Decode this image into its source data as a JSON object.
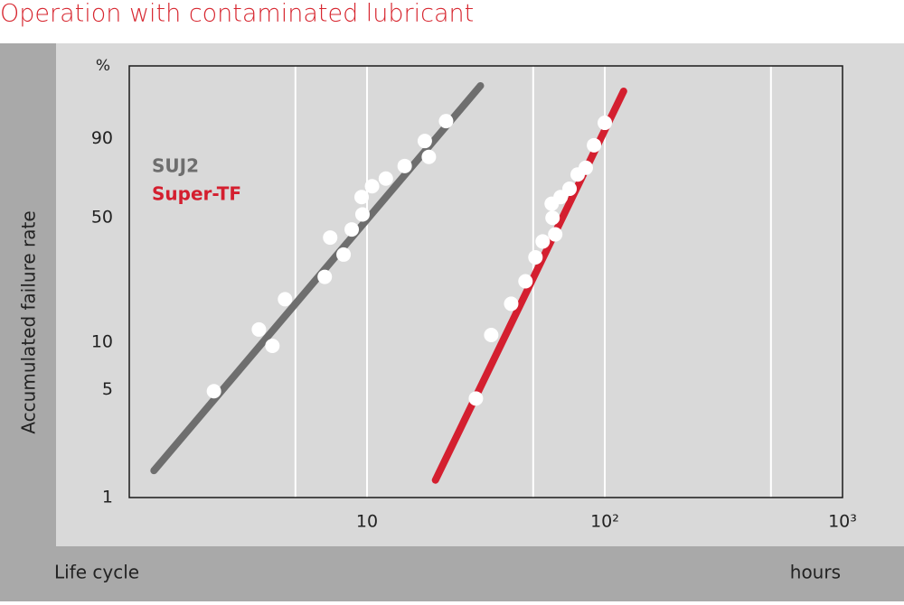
{
  "chart_data": {
    "type": "weibull",
    "title": "Operation with contaminated lubricant",
    "ylabel": "Accumulated failure rate",
    "yunit": "%",
    "xlabel": "Life cycle",
    "xunit": "hours",
    "xscale": "log",
    "yscale": "weibull",
    "xlim": [
      1,
      1000
    ],
    "xticks": [
      10,
      {
        "value": 100,
        "label": "10²"
      },
      {
        "value": 1000,
        "label": "10³"
      }
    ],
    "xgrid": [
      5,
      10,
      50,
      100,
      500
    ],
    "ylim": [
      1,
      99.9
    ],
    "yticks": [
      1,
      5,
      10,
      50,
      90
    ],
    "series": [
      {
        "name": "SUJ2",
        "color": "#6e6e6e",
        "x": [
          2.27,
          3.51,
          4.0,
          4.52,
          6.64,
          7.0,
          7.97,
          8.62,
          9.57,
          9.49,
          10.5,
          12.0,
          14.4,
          18.2,
          17.5,
          21.5
        ],
        "values": [
          4.9,
          12.0,
          9.5,
          18.3,
          24.7,
          40.2,
          32.8,
          44.1,
          51.8,
          61.3,
          67.3,
          71.5,
          78.1,
          82.5,
          89.1,
          95.0
        ],
        "fit": {
          "x": [
            1.27,
            30.0
          ],
          "values": [
            1.5,
            99.4
          ]
        }
      },
      {
        "name": "Super-TF",
        "color": "#d41f2f",
        "x": [
          28.7,
          33.3,
          40.4,
          46.4,
          51.1,
          54.8,
          61.9,
          60.3,
          59.8,
          65.2,
          71.1,
          76.9,
          83.2,
          90.1,
          100
        ],
        "values": [
          4.4,
          11.1,
          17.2,
          23.3,
          31.7,
          38.4,
          41.7,
          50,
          57.6,
          61.3,
          65.9,
          73.7,
          77.2,
          87.5,
          94.6
        ],
        "fit": {
          "x": [
            19.4,
            120
          ],
          "values": [
            1.3,
            99.1
          ]
        }
      }
    ]
  }
}
